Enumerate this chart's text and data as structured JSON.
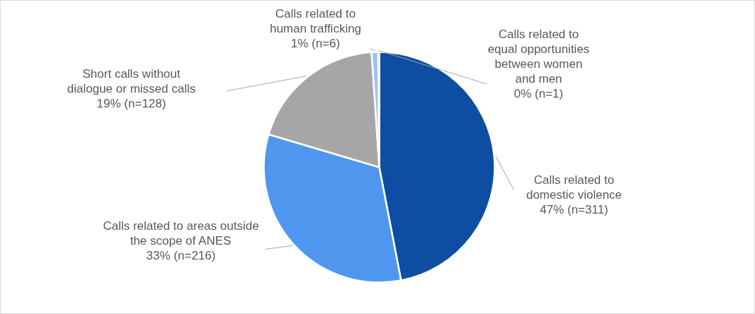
{
  "chart_data": {
    "type": "pie",
    "categories": [
      "Calls related to\ndomestic violence",
      "Calls related to areas outside\nthe scope of ANES",
      "Short calls without\ndialogue or missed calls",
      "Calls related to\nhuman trafficking",
      "Calls related to\nequal opportunities\nbetween women\nand men"
    ],
    "values": [
      311,
      216,
      128,
      6,
      1
    ],
    "value_labels": [
      "47% (n=311)",
      "33% (n=216)",
      "19% (n=128)",
      "1% (n=6)",
      "0% (n=1)"
    ],
    "colors": [
      "#0d4ea3",
      "#4f97ee",
      "#a6a6a6",
      "#9dc3f0",
      "#1f3f7a"
    ]
  }
}
